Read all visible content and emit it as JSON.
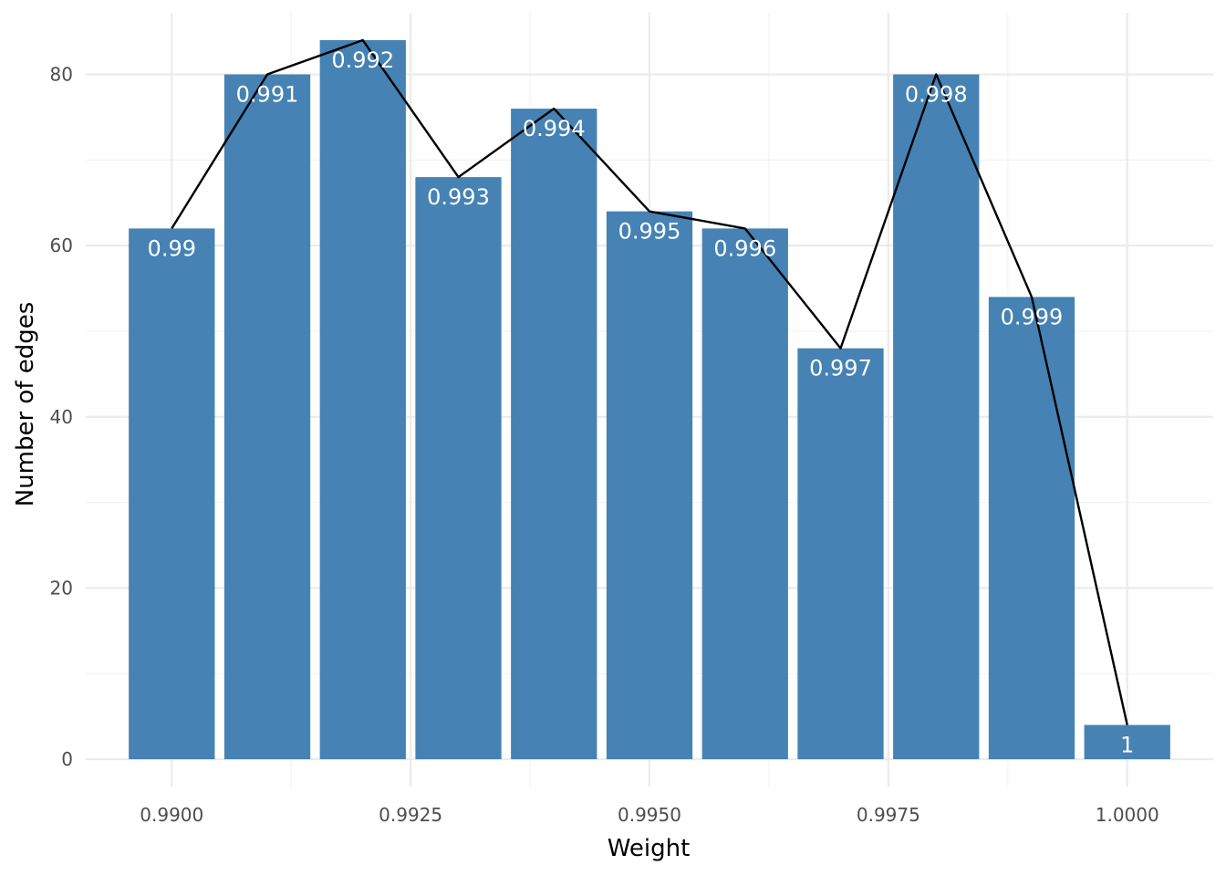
{
  "chart_data": {
    "type": "bar",
    "title": "",
    "xlabel": "Weight",
    "ylabel": "Number of edges",
    "xlim": [
      0.9891,
      1.0009
    ],
    "ylim": [
      0,
      87.2
    ],
    "xticks": [
      0.99,
      0.9925,
      0.995,
      0.9975,
      1.0
    ],
    "xtick_labels": [
      "0.9900",
      "0.9925",
      "0.9950",
      "0.9975",
      "1.0000"
    ],
    "yticks": [
      0,
      20,
      40,
      60,
      80
    ],
    "ytick_labels": [
      "0",
      "20",
      "40",
      "60",
      "80"
    ],
    "grid": true,
    "legend": "none",
    "bar_color": "#4682b4",
    "line_color": "#000000",
    "bar_width": 0.0009,
    "x": [
      0.99,
      0.991,
      0.992,
      0.993,
      0.994,
      0.995,
      0.996,
      0.997,
      0.998,
      0.999,
      1.0
    ],
    "values": [
      62,
      80,
      84,
      68,
      76,
      64,
      62,
      48,
      80,
      54,
      4
    ],
    "bar_labels": [
      "0.99",
      "0.991",
      "0.992",
      "0.993",
      "0.994",
      "0.995",
      "0.996",
      "0.997",
      "0.998",
      "0.999",
      "1"
    ]
  }
}
